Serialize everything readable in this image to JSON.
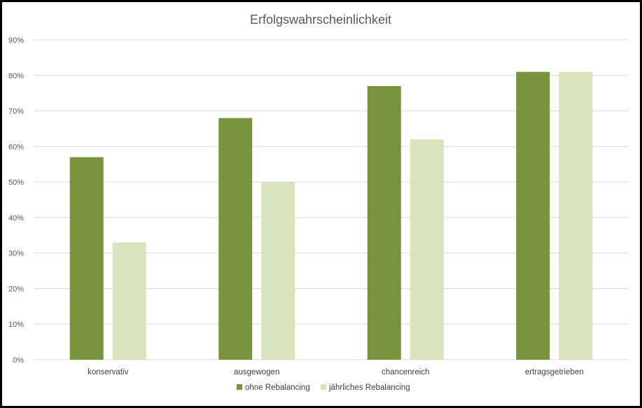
{
  "chart_data": {
    "type": "bar",
    "title": "Erfolgswahrscheinlichkeit",
    "categories": [
      "konservativ",
      "ausgewogen",
      "chancenreich",
      "ertragsgetrieben"
    ],
    "series": [
      {
        "name": "ohne Rebalancing",
        "values": [
          57,
          68,
          77,
          81
        ],
        "color": "#77933c"
      },
      {
        "name": "jährliches Rebalancing",
        "values": [
          33,
          50,
          62,
          81
        ],
        "color": "#d7e4bd"
      }
    ],
    "ylim": [
      0,
      90
    ],
    "yticks": [
      "0%",
      "10%",
      "20%",
      "30%",
      "40%",
      "50%",
      "60%",
      "70%",
      "80%",
      "90%"
    ],
    "grid": true,
    "gridColor": "#d9d9d9",
    "legend": "bottom"
  }
}
